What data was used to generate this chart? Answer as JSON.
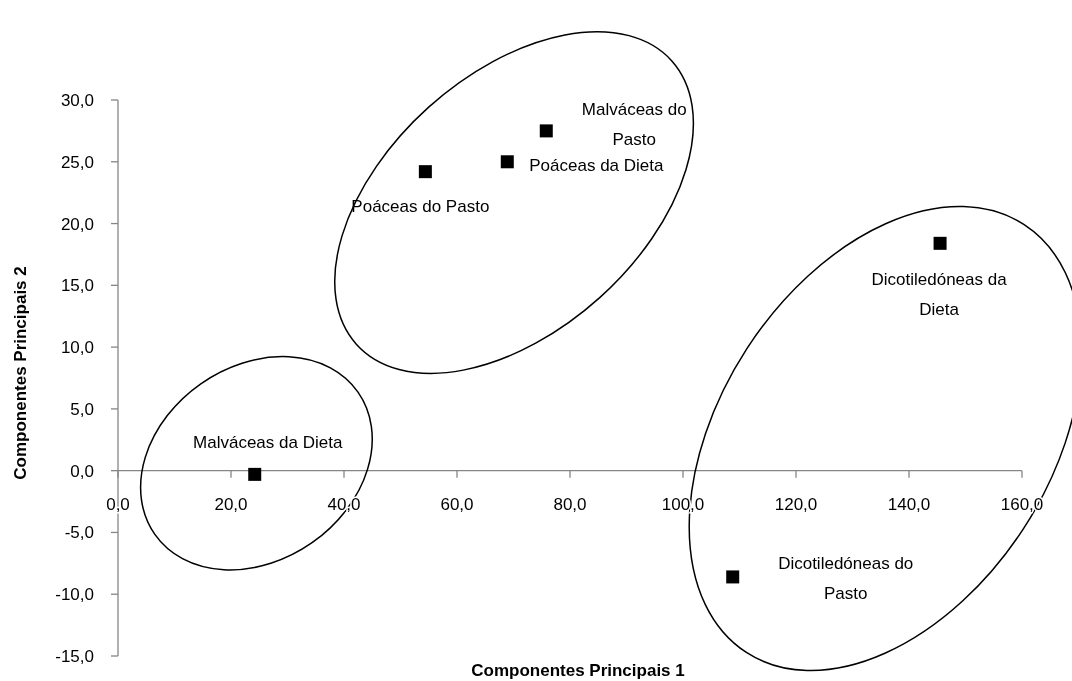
{
  "chart_data": {
    "type": "scatter",
    "xlabel": "Componentes Principais 1",
    "ylabel": "Componentes Principais 2",
    "x": [
      24.2,
      54.4,
      68.9,
      75.8,
      145.5,
      108.8
    ],
    "series": [
      {
        "color": "#000000",
        "values": [
          -0.3,
          24.2,
          25.0,
          27.5,
          18.4,
          -8.6
        ]
      }
    ],
    "marker": "square",
    "grid": false,
    "xlim": [
      0,
      160
    ],
    "xticks": [
      {
        "value": 0,
        "label": "0,0"
      },
      {
        "value": 20,
        "label": "20,0"
      },
      {
        "value": 40,
        "label": "40,0"
      },
      {
        "value": 60,
        "label": "60,0"
      },
      {
        "value": 80,
        "label": "80,0"
      },
      {
        "value": 100,
        "label": "100,0"
      },
      {
        "value": 120,
        "label": "120,0"
      },
      {
        "value": 140,
        "label": "140,0"
      },
      {
        "value": 160,
        "label": "160,0"
      }
    ],
    "ylim": [
      -15,
      30
    ],
    "yticks": [
      {
        "value": -15,
        "label": "-15,0"
      },
      {
        "value": -10,
        "label": "-10,0"
      },
      {
        "value": -5,
        "label": "-5,0"
      },
      {
        "value": 0,
        "label": "0,0"
      },
      {
        "value": 5,
        "label": "5,0"
      },
      {
        "value": 10,
        "label": "10,0"
      },
      {
        "value": 15,
        "label": "15,0"
      },
      {
        "value": 20,
        "label": "20,0"
      },
      {
        "value": 25,
        "label": "25,0"
      },
      {
        "value": 30,
        "label": "30,0"
      }
    ],
    "annotations": [
      {
        "text": "Malváceas da Dieta",
        "x": 24.2,
        "y": -0.3
      },
      {
        "text": "Poáceas do Pasto",
        "x": 54.4,
        "y": 24.2
      },
      {
        "text": "Poáceas da Dieta",
        "x": 68.9,
        "y": 25.0
      },
      {
        "text": "Malváceas do Pasto",
        "x": 75.8,
        "y": 27.5
      },
      {
        "text": "Dicotiledóneas da Dieta",
        "x": 145.5,
        "y": 18.4
      },
      {
        "text": "Dicotiledóneas do Pasto",
        "x": 108.8,
        "y": -8.6
      }
    ]
  }
}
